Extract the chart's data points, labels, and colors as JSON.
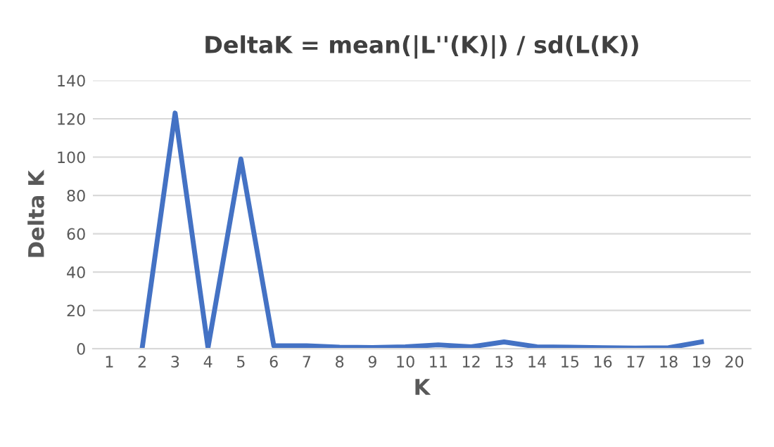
{
  "chart_data": {
    "type": "line",
    "title": "DeltaK = mean(|L''(K)|) / sd(L(K))",
    "xlabel": "K",
    "ylabel": "Delta K",
    "categories": [
      "1",
      "2",
      "3",
      "4",
      "5",
      "6",
      "7",
      "8",
      "9",
      "10",
      "11",
      "12",
      "13",
      "14",
      "15",
      "16",
      "17",
      "18",
      "19",
      "20"
    ],
    "series": [
      {
        "color": "#4472c4",
        "values": [
          null,
          0.5,
          123,
          0.5,
          99,
          1.5,
          1.5,
          0.8,
          0.6,
          1,
          2,
          1,
          3.5,
          1,
          0.8,
          0.5,
          0.3,
          0.5,
          3.5,
          null
        ]
      }
    ],
    "ylim": [
      0,
      140
    ],
    "yticks": [
      0,
      20,
      40,
      60,
      80,
      100,
      120,
      140
    ],
    "grid": "y",
    "marker": "none",
    "line_style": "solid",
    "legend": false
  }
}
